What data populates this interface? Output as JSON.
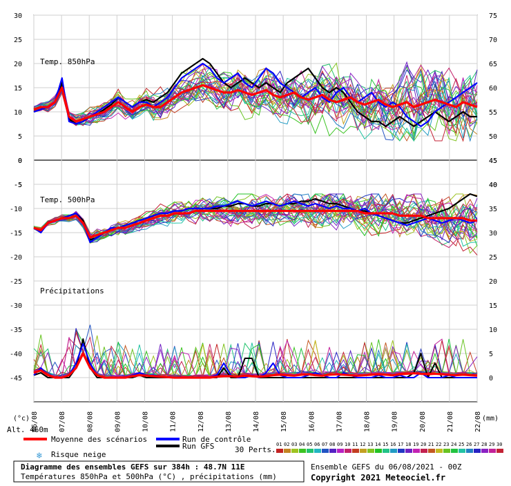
{
  "chart_data": {
    "type": "line",
    "axis_units": {
      "temp": "(°c)",
      "precip": "(mm)"
    },
    "altitude": "Alt. 460m",
    "date_ticks": [
      "06/08",
      "07/08",
      "08/08",
      "09/08",
      "10/08",
      "11/08",
      "12/08",
      "13/08",
      "14/08",
      "15/08",
      "16/08",
      "17/08",
      "18/08",
      "19/08",
      "20/08",
      "21/08",
      "22/08"
    ],
    "panels": [
      {
        "label": "Temp. 850hPa",
        "left_ticks": [
          5,
          10,
          15,
          20,
          25,
          30
        ],
        "right_ticks": [
          50,
          55,
          60,
          65,
          70,
          75
        ],
        "left_range": [
          0,
          30
        ],
        "mean": [
          10.5,
          11,
          11,
          12,
          15,
          9,
          8,
          8.5,
          9,
          9.5,
          10,
          11,
          12,
          11,
          10,
          11,
          11.5,
          11,
          11,
          12,
          13,
          14,
          14.5,
          15,
          15.5,
          15,
          14.5,
          14,
          14,
          14.5,
          14,
          13.5,
          14,
          14.5,
          13.5,
          13,
          13.5,
          14,
          13,
          12.5,
          13,
          13.5,
          12.5,
          12,
          12.5,
          13,
          12,
          11.5,
          12,
          12.5,
          11.5,
          11,
          11.5,
          12,
          11,
          11.5,
          12,
          12.5,
          12,
          11.5,
          11,
          12,
          11.5,
          11
        ],
        "control": [
          10,
          10.5,
          11,
          12,
          17,
          8,
          7.5,
          8,
          9,
          10,
          11,
          12,
          13,
          12,
          11,
          12,
          12,
          11,
          12,
          13,
          15,
          17,
          18,
          19,
          20,
          19,
          17,
          16,
          17,
          18,
          16,
          15,
          17,
          19,
          18,
          16,
          15,
          14,
          13,
          14,
          15,
          13,
          12,
          14,
          15,
          13,
          12,
          13,
          14,
          12,
          11,
          12,
          11,
          9,
          8,
          7,
          8,
          10,
          11,
          12,
          13,
          14,
          15,
          16
        ],
        "gfs": [
          10,
          10.5,
          11,
          12,
          16,
          8.5,
          7.5,
          8,
          9,
          9.5,
          10.5,
          11.5,
          13,
          12,
          11,
          12,
          12.5,
          12,
          13,
          14,
          16,
          18,
          19,
          20,
          21,
          20,
          18,
          16,
          15,
          16,
          17,
          16,
          15,
          16,
          15,
          14,
          16,
          17,
          18,
          19,
          17,
          15,
          14,
          15,
          14,
          12,
          10,
          9,
          8,
          8,
          7,
          8,
          9,
          8,
          7,
          8,
          9,
          10,
          9,
          8,
          9,
          10,
          9,
          9
        ]
      },
      {
        "label": "Temp. 500hPa",
        "left_ticks": [
          -20,
          -15,
          -10,
          -5,
          0
        ],
        "right_ticks": [
          25,
          30,
          35,
          40,
          45
        ],
        "left_range": [
          -20,
          0
        ],
        "mean": [
          -14,
          -14.5,
          -13,
          -12.5,
          -12,
          -12,
          -11.5,
          -13,
          -16,
          -15.5,
          -15,
          -14.5,
          -14,
          -14,
          -13.5,
          -13,
          -12.5,
          -12,
          -11.5,
          -11.5,
          -11,
          -11,
          -11,
          -10.5,
          -10.5,
          -10.5,
          -10.5,
          -10.5,
          -10.5,
          -10.5,
          -10.5,
          -10.5,
          -10.5,
          -10.5,
          -10.5,
          -10.5,
          -10.5,
          -10.5,
          -10.5,
          -10.5,
          -10.5,
          -10.5,
          -10.5,
          -10.5,
          -10.5,
          -10.5,
          -10.5,
          -11,
          -11,
          -11,
          -11,
          -11,
          -11.5,
          -11.5,
          -11.5,
          -11.5,
          -12,
          -12,
          -12,
          -12,
          -12,
          -12,
          -12.5,
          -12.5
        ],
        "control": [
          -14,
          -15,
          -13,
          -12.5,
          -12,
          -11.5,
          -11,
          -13,
          -17,
          -16,
          -15,
          -14,
          -14,
          -13.5,
          -13,
          -12.5,
          -12,
          -11.5,
          -11,
          -11,
          -10.5,
          -10.5,
          -10,
          -10,
          -10,
          -10,
          -9.5,
          -9.5,
          -9,
          -8.5,
          -9,
          -9.5,
          -9,
          -8.5,
          -9,
          -9.5,
          -9,
          -8.5,
          -9,
          -9.5,
          -9,
          -9.5,
          -10,
          -9.5,
          -10,
          -10,
          -10.5,
          -10,
          -11,
          -11.5,
          -12,
          -12.5,
          -13,
          -13.5,
          -13,
          -12.5,
          -12,
          -12.5,
          -13,
          -12.5,
          -12,
          -12.5,
          -13,
          -12.5
        ],
        "gfs": [
          -14,
          -14.5,
          -13,
          -12.5,
          -12,
          -11.5,
          -11,
          -12.5,
          -16.5,
          -16,
          -15,
          -14.5,
          -14,
          -13.5,
          -13,
          -12.5,
          -12,
          -11.5,
          -11,
          -11,
          -10.5,
          -10.5,
          -10,
          -10,
          -10,
          -10,
          -10,
          -9.5,
          -9.5,
          -9,
          -9,
          -9.5,
          -9.5,
          -9,
          -9,
          -9.5,
          -9,
          -9,
          -8.5,
          -8.5,
          -8,
          -8.5,
          -9,
          -9,
          -9.5,
          -10,
          -10.5,
          -10.5,
          -11,
          -11.5,
          -12,
          -12.5,
          -13,
          -13,
          -12.5,
          -12,
          -11.5,
          -11,
          -10.5,
          -10,
          -9,
          -8,
          -7,
          -7.5
        ]
      },
      {
        "label": "Précipitations",
        "left_ticks": [
          -45,
          -40,
          -35,
          -30,
          -25
        ],
        "right_ticks": [
          0,
          5,
          10,
          15,
          20
        ],
        "left_range": [
          -45,
          -25
        ],
        "right_range": [
          0,
          20
        ],
        "mean": [
          1,
          1.5,
          0.5,
          0,
          0,
          0.5,
          2,
          5,
          2,
          0.5,
          0,
          0,
          0,
          0,
          0.3,
          0.5,
          0.4,
          0.3,
          0.2,
          0.1,
          0,
          0,
          0,
          0,
          0,
          0,
          0.2,
          0.3,
          0.3,
          0.2,
          0.4,
          0.3,
          0.2,
          0.3,
          0.5,
          0.6,
          0.5,
          0.4,
          0.6,
          0.7,
          0.5,
          0.4,
          0.6,
          0.7,
          0.6,
          0.5,
          0.4,
          0.5,
          0.6,
          0.7,
          0.6,
          0.5,
          0.7,
          0.8,
          0.9,
          0.8,
          0.7,
          0.8,
          0.7,
          0.6,
          0.5,
          0.6,
          0.5,
          0.4
        ],
        "control": [
          0.5,
          2,
          0.5,
          0,
          0,
          0.5,
          3,
          7,
          3,
          0.5,
          0,
          0,
          0,
          0,
          0.5,
          1,
          0.5,
          0.5,
          0.3,
          0,
          0,
          0,
          0,
          0,
          0,
          0,
          0.5,
          3,
          0.5,
          0,
          0,
          0.5,
          0,
          1,
          3,
          0.5,
          0,
          0,
          0,
          0.5,
          1,
          0.5,
          0,
          0,
          1,
          0.5,
          0,
          0,
          0,
          0.5,
          0,
          0,
          0.5,
          0,
          0,
          1,
          0,
          0,
          0,
          0.5,
          0,
          0,
          0,
          0
        ],
        "gfs": [
          0.5,
          1,
          0,
          0,
          0,
          0,
          2,
          8,
          2,
          0,
          0,
          0,
          0,
          0,
          0,
          0.5,
          0,
          0,
          0,
          0,
          0,
          0,
          0,
          0,
          0,
          0,
          0,
          2,
          0,
          0,
          4,
          4,
          0,
          0,
          0,
          0,
          0,
          0,
          0,
          0,
          0,
          0,
          0,
          0,
          0,
          0,
          0,
          0,
          0,
          0,
          0,
          0,
          0,
          0,
          1,
          5,
          0,
          3,
          0,
          0,
          0,
          0,
          0,
          0
        ]
      }
    ],
    "legend": {
      "mean": "Moyenne des scénarios",
      "control": "Run de contrôle",
      "gfs": "Run GFS",
      "snow": "Risque neige",
      "perts": "30 Perts.",
      "pert_numbers": [
        "01",
        "02",
        "03",
        "04",
        "05",
        "06",
        "07",
        "08",
        "09",
        "10",
        "11",
        "12",
        "13",
        "14",
        "15",
        "16",
        "17",
        "18",
        "19",
        "20",
        "21",
        "22",
        "23",
        "24",
        "25",
        "26",
        "27",
        "28",
        "29",
        "30"
      ]
    },
    "colors": {
      "mean": "#ff0000",
      "control": "#0000ff",
      "gfs": "#000000",
      "snow": "#3b9bd6"
    }
  },
  "footer": {
    "title": "Diagramme des ensembles GEFS sur 384h : 48.7N 11E",
    "subtitle": "Températures 850hPa et 500hPa (°C) , précipitations (mm)",
    "run": "Ensemble GEFS du 06/08/2021 - 00Z",
    "copyright": "Copyright 2021 Meteociel.fr"
  }
}
